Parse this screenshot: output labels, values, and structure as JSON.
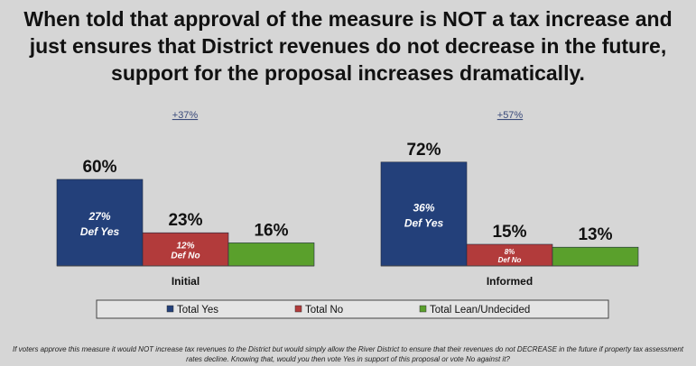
{
  "title_lines": [
    "When told that approval of the measure is NOT a tax increase and",
    "just ensures that District revenues do not decrease in the future,",
    "support for the proposal increases dramatically."
  ],
  "chart_data": {
    "type": "bar",
    "categories": [
      "Initial",
      "Informed"
    ],
    "series": [
      {
        "name": "Total Yes",
        "values": [
          60,
          72
        ],
        "color": "#23407a"
      },
      {
        "name": "Total No",
        "values": [
          23,
          15
        ],
        "color": "#b23b3b"
      },
      {
        "name": "Total Lean/Undecided",
        "values": [
          16,
          13
        ],
        "color": "#5aa02c"
      }
    ],
    "value_labels": [
      [
        "60%",
        "23%",
        "16%"
      ],
      [
        "72%",
        "15%",
        "13%"
      ]
    ],
    "inner_labels": [
      [
        [
          "27%",
          "Def Yes"
        ],
        [
          "12%",
          "Def No"
        ],
        null
      ],
      [
        [
          "36%",
          "Def Yes"
        ],
        [
          "8%",
          "Def No"
        ],
        null
      ]
    ],
    "group_changes": [
      "+37%",
      "+57%"
    ],
    "ylim": [
      0,
      80
    ],
    "legend_position": "bottom"
  },
  "footnote_lines": [
    "If voters approve this measure it would NOT increase tax revenues to the District but would simply allow the River District to ensure that their revenues do not DECREASE in the future if property tax assessment",
    "rates decline. Knowing that, would you then vote Yes in support of this proposal or vote No against it?"
  ]
}
